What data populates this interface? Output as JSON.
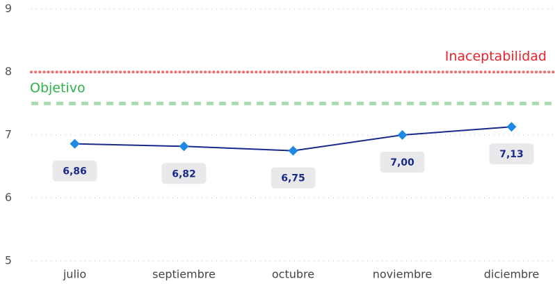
{
  "chart_data": {
    "type": "line",
    "categories": [
      "julio",
      "septiembre",
      "octubre",
      "noviembre",
      "diciembre"
    ],
    "values": [
      6.86,
      6.82,
      6.75,
      7.0,
      7.13
    ],
    "value_labels": [
      "6,86",
      "6,82",
      "6,75",
      "7,00",
      "7,13"
    ],
    "color": "#1a2a8c",
    "marker_color": "#1e88e5",
    "ylim": [
      5,
      9
    ],
    "yticks": [
      5,
      6,
      7,
      8,
      9
    ],
    "grid": true,
    "reference_lines": [
      {
        "label": "Inaceptabilidad",
        "value": 8,
        "color": "#f06b6b"
      },
      {
        "label": "Objetivo",
        "value": 7.5,
        "color": "#a8dcb0"
      }
    ]
  }
}
